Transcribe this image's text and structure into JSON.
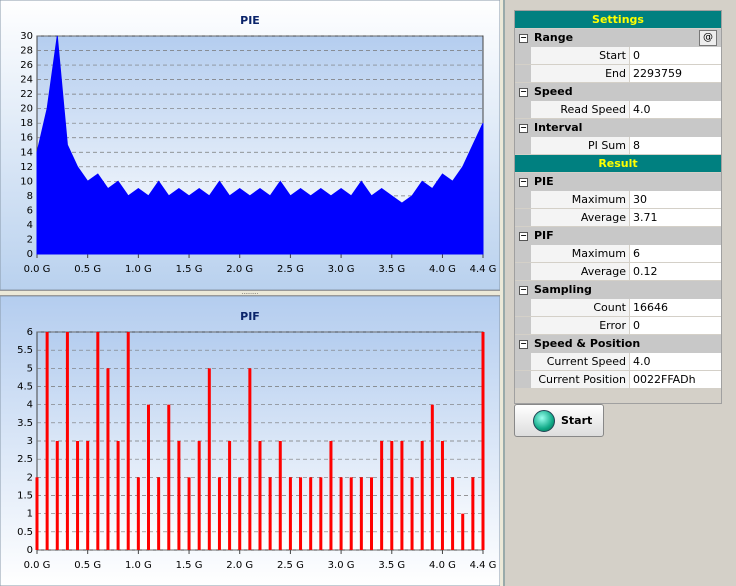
{
  "chart_data": [
    {
      "type": "area",
      "title": "PIE",
      "color": "#0000ff",
      "x": [
        0.0,
        0.1,
        0.2,
        0.3,
        0.4,
        0.5,
        0.6,
        0.7,
        0.8,
        0.9,
        1.0,
        1.1,
        1.2,
        1.3,
        1.4,
        1.5,
        1.6,
        1.7,
        1.8,
        1.9,
        2.0,
        2.1,
        2.2,
        2.3,
        2.4,
        2.5,
        2.6,
        2.7,
        2.8,
        2.9,
        3.0,
        3.1,
        3.2,
        3.3,
        3.4,
        3.5,
        3.6,
        3.7,
        3.8,
        3.9,
        4.0,
        4.1,
        4.2,
        4.3,
        4.4
      ],
      "values": [
        14,
        20,
        30,
        15,
        12,
        10,
        11,
        9,
        10,
        8,
        9,
        8,
        10,
        8,
        9,
        8,
        9,
        8,
        10,
        8,
        9,
        8,
        9,
        8,
        10,
        8,
        9,
        8,
        9,
        8,
        9,
        8,
        10,
        8,
        9,
        8,
        7,
        8,
        10,
        9,
        11,
        10,
        12,
        15,
        18
      ],
      "xlim": [
        0,
        4.4
      ],
      "xticks": [
        {
          "value": 0,
          "label": "0.0 G"
        },
        {
          "value": 0.5,
          "label": "0.5 G"
        },
        {
          "value": 1,
          "label": "1.0 G"
        },
        {
          "value": 1.5,
          "label": "1.5 G"
        },
        {
          "value": 2,
          "label": "2.0 G"
        },
        {
          "value": 2.5,
          "label": "2.5 G"
        },
        {
          "value": 3,
          "label": "3.0 G"
        },
        {
          "value": 3.5,
          "label": "3.5 G"
        },
        {
          "value": 4,
          "label": "4.0 G"
        },
        {
          "value": 4.4,
          "label": "4.4 G"
        }
      ],
      "ylim": [
        0,
        30
      ],
      "yticks": [
        0,
        2,
        4,
        6,
        8,
        10,
        12,
        14,
        16,
        18,
        20,
        22,
        24,
        26,
        28,
        30
      ],
      "grid": true
    },
    {
      "type": "bar",
      "title": "PIF",
      "color": "#ff0000",
      "x": [
        0.0,
        0.1,
        0.2,
        0.3,
        0.4,
        0.5,
        0.6,
        0.7,
        0.8,
        0.9,
        1.0,
        1.1,
        1.2,
        1.3,
        1.4,
        1.5,
        1.6,
        1.7,
        1.8,
        1.9,
        2.0,
        2.1,
        2.2,
        2.3,
        2.4,
        2.5,
        2.6,
        2.7,
        2.8,
        2.9,
        3.0,
        3.1,
        3.2,
        3.3,
        3.4,
        3.5,
        3.6,
        3.7,
        3.8,
        3.9,
        4.0,
        4.1,
        4.2,
        4.3,
        4.4
      ],
      "values": [
        2,
        6,
        3,
        6,
        3,
        3,
        6,
        5,
        3,
        6,
        2,
        4,
        2,
        4,
        3,
        2,
        3,
        5,
        2,
        3,
        2,
        5,
        3,
        2,
        3,
        2,
        2,
        2,
        2,
        3,
        2,
        2,
        2,
        2,
        3,
        3,
        3,
        2,
        3,
        4,
        3,
        2,
        1,
        2,
        6
      ],
      "xlim": [
        0,
        4.4
      ],
      "xticks": [
        {
          "value": 0,
          "label": "0.0 G"
        },
        {
          "value": 0.5,
          "label": "0.5 G"
        },
        {
          "value": 1,
          "label": "1.0 G"
        },
        {
          "value": 1.5,
          "label": "1.5 G"
        },
        {
          "value": 2,
          "label": "2.0 G"
        },
        {
          "value": 2.5,
          "label": "2.5 G"
        },
        {
          "value": 3,
          "label": "3.0 G"
        },
        {
          "value": 3.5,
          "label": "3.5 G"
        },
        {
          "value": 4,
          "label": "4.0 G"
        },
        {
          "value": 4.4,
          "label": "4.4 G"
        }
      ],
      "ylim": [
        0,
        6
      ],
      "yticks": [
        0,
        0.5,
        1,
        1.5,
        2,
        2.5,
        3,
        3.5,
        4,
        4.5,
        5,
        5.5,
        6
      ],
      "grid": true
    }
  ],
  "panel": {
    "settings_title": "Settings",
    "range_button": "@",
    "settings": [
      {
        "title": "Range",
        "rows": [
          {
            "label": "Start",
            "value": "0"
          },
          {
            "label": "End",
            "value": "2293759"
          }
        ]
      },
      {
        "title": "Speed",
        "rows": [
          {
            "label": "Read Speed",
            "value": "4.0"
          }
        ]
      },
      {
        "title": "Interval",
        "rows": [
          {
            "label": "PI Sum",
            "value": "8"
          }
        ]
      }
    ],
    "result_title": "Result",
    "result": [
      {
        "title": "PIE",
        "rows": [
          {
            "label": "Maximum",
            "value": "30"
          },
          {
            "label": "Average",
            "value": "3.71"
          }
        ]
      },
      {
        "title": "PIF",
        "rows": [
          {
            "label": "Maximum",
            "value": "6"
          },
          {
            "label": "Average",
            "value": "0.12"
          }
        ]
      },
      {
        "title": "Sampling",
        "rows": [
          {
            "label": "Count",
            "value": "16646"
          },
          {
            "label": "Error",
            "value": "0"
          }
        ]
      },
      {
        "title": "Speed & Position",
        "rows": [
          {
            "label": "Current Speed",
            "value": "4.0"
          },
          {
            "label": "Current Position",
            "value": "0022FFADh"
          }
        ]
      }
    ]
  },
  "start_button": "Start"
}
